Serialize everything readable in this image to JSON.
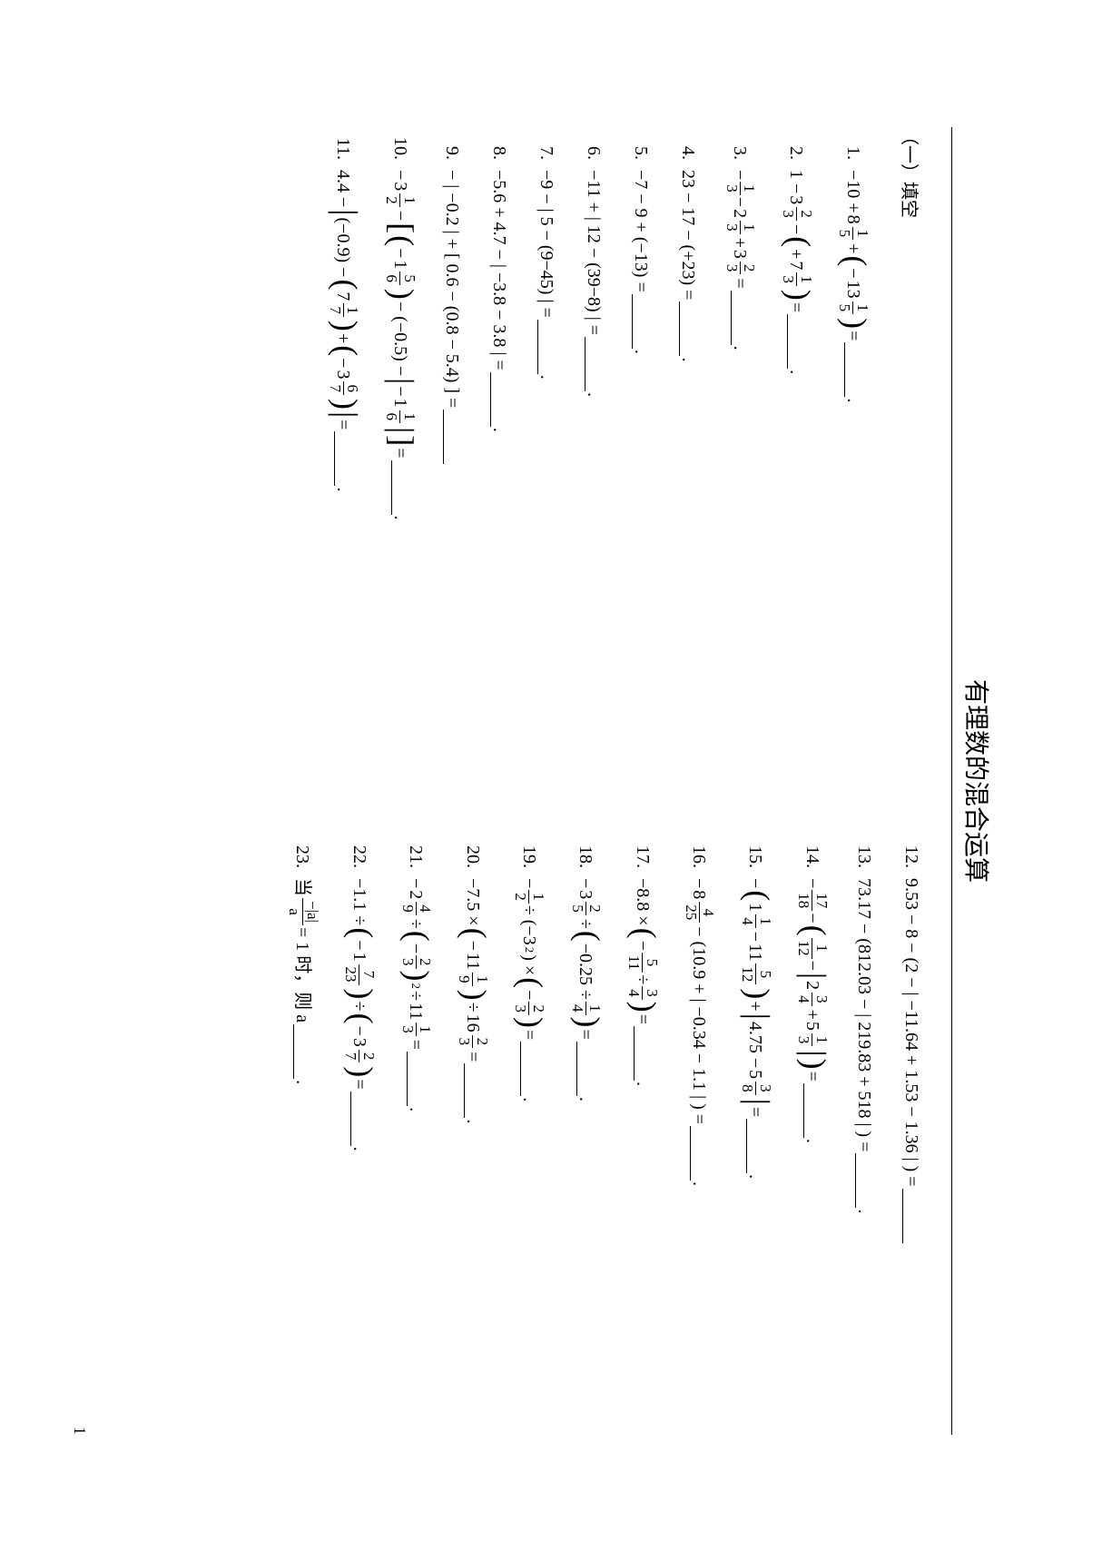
{
  "title": "有理数的混合运算",
  "section_heading": "（一）填空",
  "page_number": "1",
  "left": [
    {
      "n": "1.",
      "pre": "−10 + ",
      "mix1": {
        "w": "8",
        "n": "1",
        "d": "5"
      },
      "mid": " + ",
      "par": true,
      "neg": "−",
      "mix2": {
        "w": "13",
        "n": "1",
        "d": "5"
      },
      "post": " = ",
      "blank": true,
      "dot": true
    },
    {
      "n": "2.",
      "pre": "1 − ",
      "mix1": {
        "w": "3",
        "n": "2",
        "d": "3"
      },
      "mid": " − ",
      "par": true,
      "neg": "+",
      "mix2": {
        "w": "7",
        "n": "1",
        "d": "3"
      },
      "post": " = ",
      "blank": true,
      "dot": true
    },
    {
      "n": "3.",
      "pre": "− ",
      "fr1": {
        "n": "1",
        "d": "3"
      },
      "mid": " − ",
      "mix1": {
        "w": "2",
        "n": "1",
        "d": "3"
      },
      "mid2": " + ",
      "mix2": {
        "w": "3",
        "n": "2",
        "d": "3"
      },
      "post": " = ",
      "blank": true,
      "dot": true,
      "type": "threefrac"
    },
    {
      "n": "4.",
      "text": "23 − 17 − (+23) = ",
      "blank": true,
      "dot": true,
      "type": "plain"
    },
    {
      "n": "5.",
      "text": "−7 − 9 + (−13) = ",
      "blank": true,
      "dot": true,
      "type": "plain"
    },
    {
      "n": "6.",
      "text": "−11 + | 12 − (39−8) | = ",
      "blank": true,
      "dot": true,
      "type": "plain"
    },
    {
      "n": "7.",
      "text": "−9 − | 5 − (9−45) | = ",
      "blank": true,
      "dot": true,
      "type": "plain"
    },
    {
      "n": "8.",
      "text": "−5.6 + 4.7 − | −3.8 − 3.8 | = ",
      "blank": true,
      "dot": true,
      "type": "plain"
    },
    {
      "n": "9.",
      "text": "− | −0.2 | + [ 0.6 − (0.8 − 5.4) ] = ",
      "blank": true,
      "type": "plain"
    },
    {
      "n": "10.",
      "type": "p10"
    },
    {
      "n": "11.",
      "type": "p11"
    }
  ],
  "right": [
    {
      "n": "12.",
      "text": "9.53 − 8 − (2 − | −11.64 + 1.53 − 1.36 | ) = ",
      "blank": true,
      "type": "plain"
    },
    {
      "n": "13.",
      "text": "73.17 − (812.03 − | 219.83 + 518 | ) = ",
      "blank": true,
      "dot": true,
      "type": "plain"
    },
    {
      "n": "14.",
      "type": "p14"
    },
    {
      "n": "15.",
      "type": "p15"
    },
    {
      "n": "16.",
      "type": "p16"
    },
    {
      "n": "17.",
      "type": "p17"
    },
    {
      "n": "18.",
      "type": "p18"
    },
    {
      "n": "19.",
      "type": "p19"
    },
    {
      "n": "20.",
      "type": "p20"
    },
    {
      "n": "21.",
      "type": "p21"
    },
    {
      "n": "22.",
      "type": "p22"
    },
    {
      "n": "23.",
      "type": "p23"
    }
  ],
  "p10": {
    "a": "−",
    "mix1": {
      "w": "3",
      "n": "1",
      "d": "2"
    },
    "b": " − ",
    "lp": "[",
    "lp2": "(",
    "neg": "−",
    "mix2": {
      "w": "1",
      "n": "5",
      "d": "6"
    },
    "rp2": ")",
    "c": " − (−0.5) − ",
    "vb": "|",
    "neg2": "−",
    "mix3": {
      "w": "1",
      "n": "1",
      "d": "6"
    },
    "vb2": "|",
    "rp": "]",
    "eq": " = ",
    "dot": true
  },
  "p11": {
    "a": "4.4 − ",
    "vb": "|",
    "b": "(−0.9) − ",
    "lp": "(",
    "mix1": {
      "w": "7",
      "n": "1",
      "d": "7"
    },
    "rp": ")",
    "c": " + ",
    "lp2": "(",
    "neg": "−",
    "mix2": {
      "w": "3",
      "n": "6",
      "d": "7"
    },
    "rp2": ")",
    "vb2": "|",
    "eq": " = ",
    "dot": true
  },
  "p14": {
    "a": "− ",
    "fr1": {
      "n": "17",
      "d": "18"
    },
    "b": " − ",
    "lp": "(",
    "fr2": {
      "n": "1",
      "d": "12"
    },
    "c": " − ",
    "vb": "|",
    "mix1": {
      "w": "2",
      "n": "3",
      "d": "4"
    },
    "d": " + ",
    "mix2": {
      "w": "5",
      "n": "1",
      "d": "3"
    },
    "vb2": "|",
    "rp": ")",
    "eq": " = ",
    "dot": true
  },
  "p15": {
    "a": "− ",
    "lp": "(",
    "mix1": {
      "w": "1",
      "n": "1",
      "d": "4"
    },
    "b": " − ",
    "mix2": {
      "w": "11",
      "n": "5",
      "d": "12"
    },
    "rp": ")",
    "c": " + ",
    "vb": "|",
    "d": "4.75 − ",
    "mix3": {
      "w": "5",
      "n": "3",
      "d": "8"
    },
    "vb2": "|",
    "eq": " = ",
    "dot": true
  },
  "p16": {
    "a": "− ",
    "mix1": {
      "w": "8",
      "n": "4",
      "d": "25"
    },
    "b": " − (10.9 + | −0.34 − 1.1 | ) = ",
    "dot": true
  },
  "p17": {
    "a": "−8.8 × ",
    "lp": "(",
    "b": "− ",
    "fr1": {
      "n": "5",
      "d": "11"
    },
    "c": " ÷ ",
    "fr2": {
      "n": "3",
      "d": "4"
    },
    "rp": ")",
    "eq": " = ",
    "dot": true
  },
  "p18": {
    "a": "− ",
    "mix1": {
      "w": "3",
      "n": "2",
      "d": "5"
    },
    "b": " ÷ ",
    "lp": "(",
    "c": "−0.25 ÷ ",
    "fr1": {
      "n": "1",
      "d": "4"
    },
    "rp": ")",
    "eq": " = ",
    "dot": true
  },
  "p19": {
    "a": "− ",
    "fr1": {
      "n": "1",
      "d": "2"
    },
    "b": " ÷ (−3",
    "sup": "2",
    "c": ") × ",
    "lp": "(",
    "d": "− ",
    "fr2": {
      "n": "2",
      "d": "3"
    },
    "rp": ")",
    "eq": " = ",
    "dot": true
  },
  "p20": {
    "a": "−7.5 × ",
    "lp": "(",
    "b": "− ",
    "mix1": {
      "w": "11",
      "n": "1",
      "d": "9"
    },
    "rp": ")",
    "c": " ÷ ",
    "mix2": {
      "w": "16",
      "n": "2",
      "d": "3"
    },
    "eq": " = ",
    "dot": true
  },
  "p21": {
    "a": "− ",
    "mix1": {
      "w": "2",
      "n": "4",
      "d": "9"
    },
    "b": " ÷ ",
    "lp": "(",
    "c": "− ",
    "fr1": {
      "n": "2",
      "d": "3"
    },
    "rp": ")",
    "sup": "2",
    "d": " ÷ ",
    "mix2": {
      "w": "11",
      "n": "1",
      "d": "3"
    },
    "eq": " = ",
    "dot": true
  },
  "p22": {
    "a": "−1.1 ÷ ",
    "lp": "(",
    "b": "− ",
    "mix1": {
      "w": "1",
      "n": "7",
      "d": "23"
    },
    "rp": ")",
    "c": " ÷ ",
    "lp2": "(",
    "d": "− ",
    "mix2": {
      "w": "3",
      "n": "2",
      "d": "7"
    },
    "rp2": ")",
    "eq": " = ",
    "dot": true
  },
  "p23": {
    "a": "当 ",
    "fr_top": "−|a|",
    "fr_bot": "a",
    "b": " = 1 时，则 a ",
    "dot": true
  },
  "colors": {
    "text": "#000000",
    "bg": "#ffffff"
  }
}
